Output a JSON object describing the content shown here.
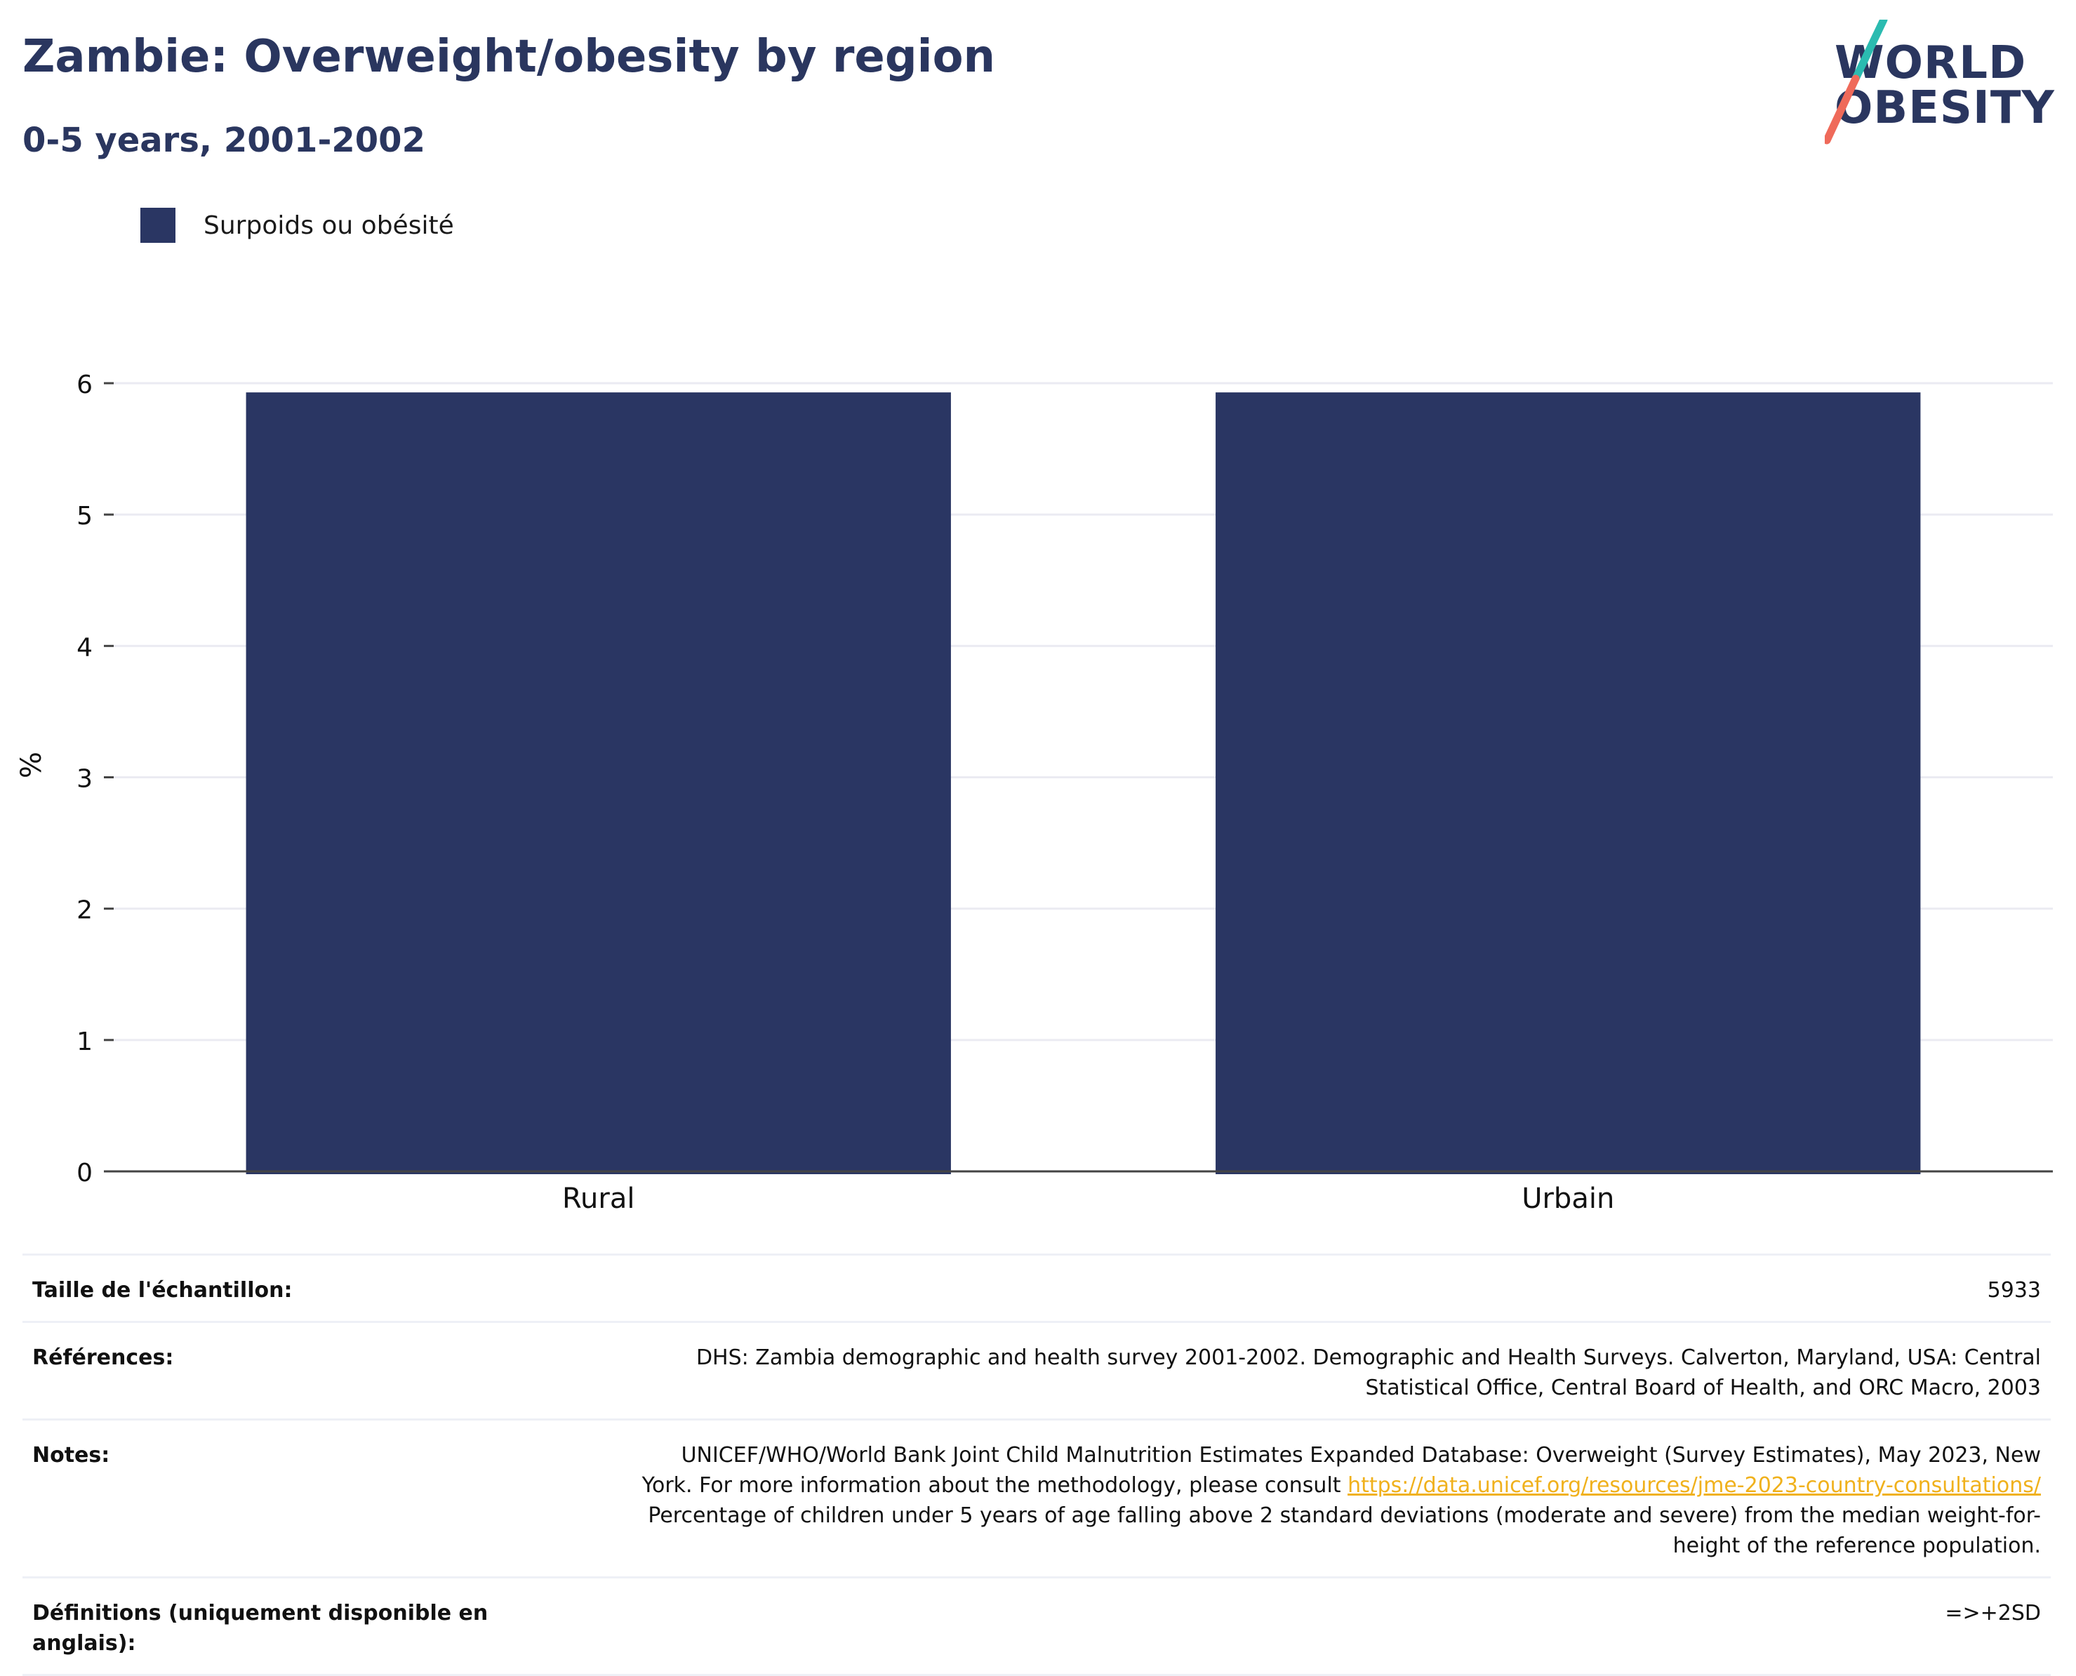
{
  "header": {
    "title": "Zambie: Overweight/obesity by region",
    "subtitle": "0-5 years, 2001-2002"
  },
  "logo": {
    "line1": "WORLD",
    "line2": "OBESITY"
  },
  "legend": {
    "label": "Surpoids ou obésité"
  },
  "colors": {
    "bar": "#2a3663",
    "title": "#2a365f",
    "link": "#f0b11c",
    "logo_teal": "#2bbbb0",
    "logo_coral": "#ef6a5a"
  },
  "chart_data": {
    "type": "bar",
    "title": "Zambie: Overweight/obesity by region",
    "subtitle": "0-5 years, 2001-2002",
    "categories": [
      "Rural",
      "Urbain"
    ],
    "series": [
      {
        "name": "Surpoids ou obésité",
        "values": [
          5.93,
          5.93
        ]
      }
    ],
    "xlabel": "",
    "ylabel": "%",
    "ylim": [
      0,
      6
    ],
    "yticks": [
      0,
      1,
      2,
      3,
      4,
      5,
      6
    ],
    "grid": true,
    "legend_position": "top-left"
  },
  "info": {
    "sample": {
      "label": "Taille de l'échantillon:",
      "value": "5933"
    },
    "references": {
      "label": "Références:",
      "value_line1": "DHS: Zambia demographic and health survey 2001-2002. Demographic and Health Surveys. Calverton, Maryland, USA: Central",
      "value_line2": "Statistical Office, Central Board of Health, and ORC Macro, 2003"
    },
    "notes": {
      "label": "Notes:",
      "value_line1": "UNICEF/WHO/World Bank Joint Child Malnutrition Estimates Expanded Database: Overweight (Survey Estimates), May 2023, New",
      "value_line2_pre": "York. For more information about the methodology, please consult",
      "link": "https://data.unicef.org/resources/jme-2023-country-consultations/",
      "value_line3": "Percentage of children under 5 years of age falling above 2 standard deviations (moderate and severe) from the median weight-for-",
      "value_line4": "height of the reference population."
    },
    "definitions": {
      "label_line1": "Définitions (uniquement disponible en",
      "label_line2": "anglais):",
      "value": "=>+2SD"
    }
  }
}
